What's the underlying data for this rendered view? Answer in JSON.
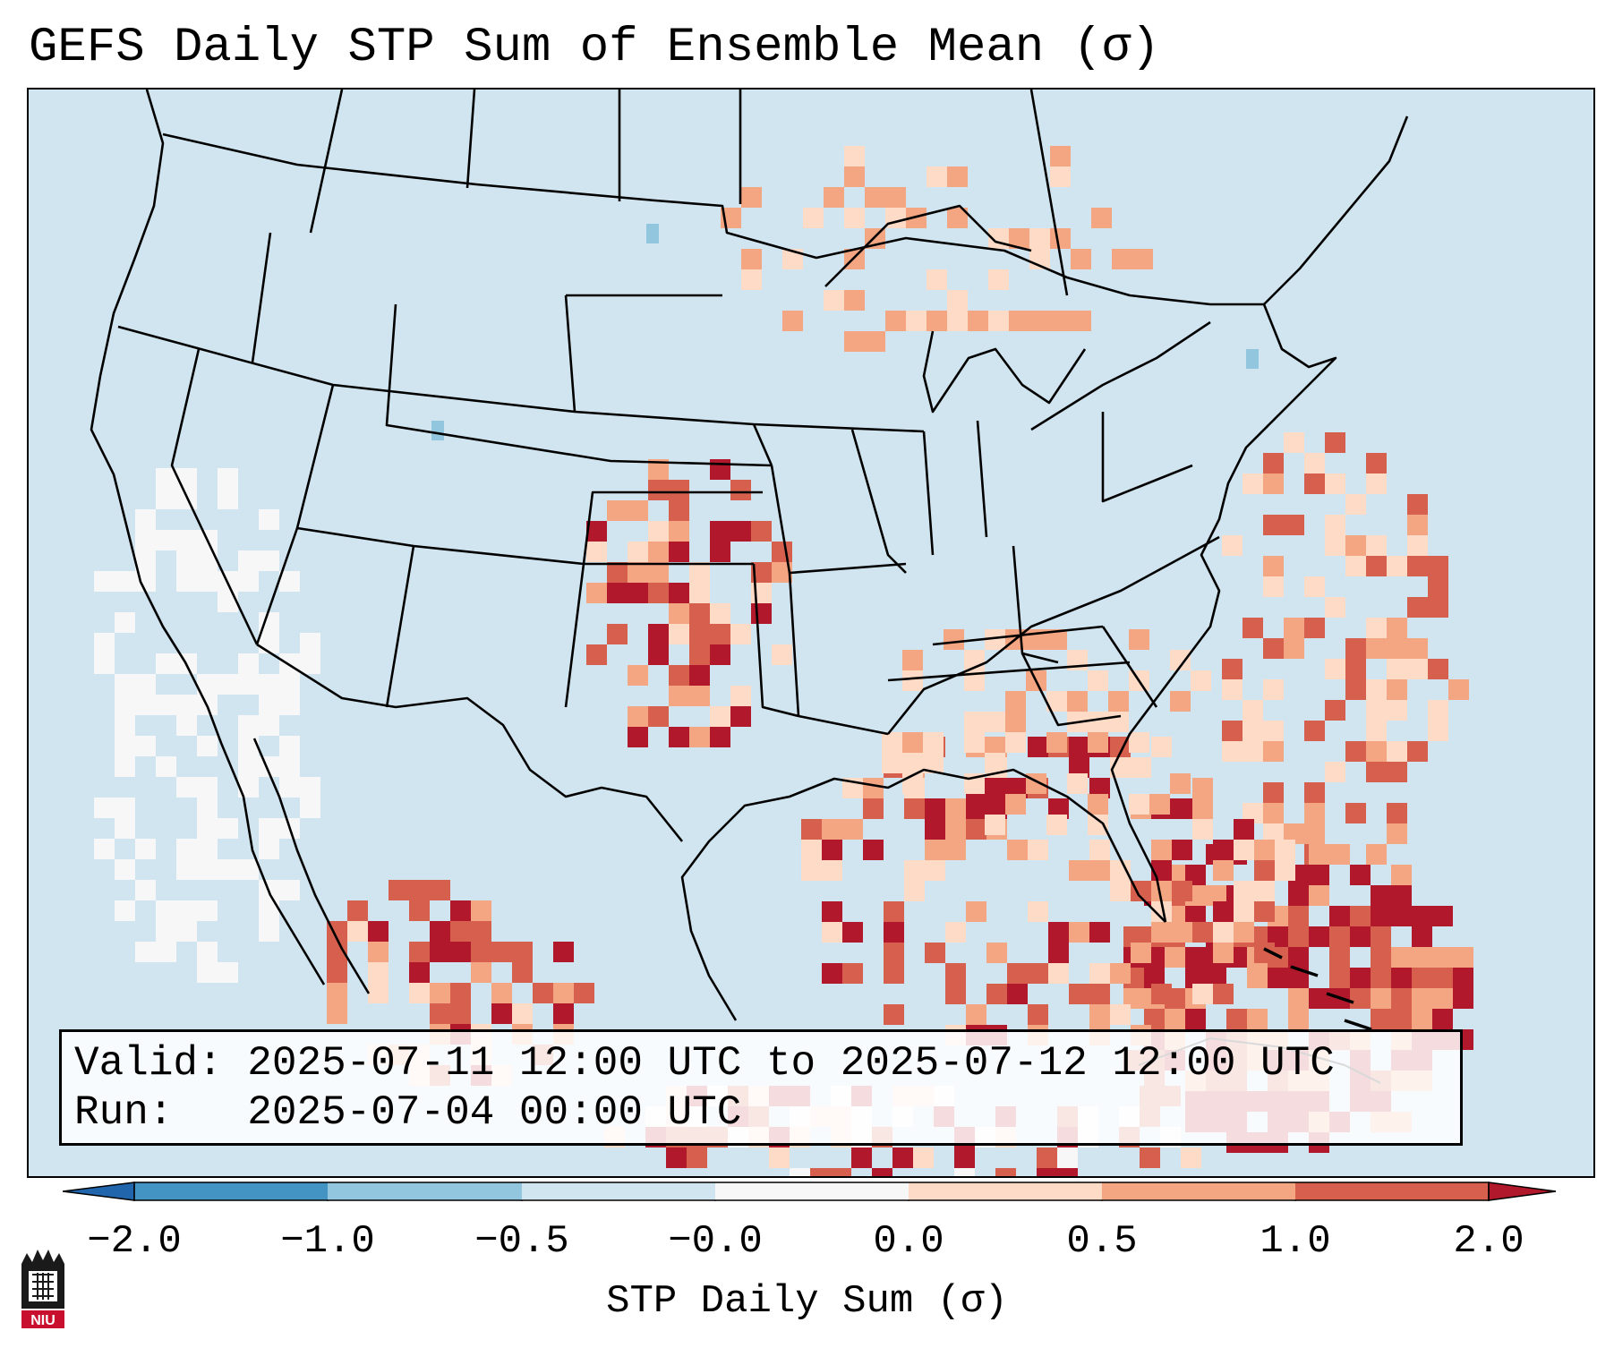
{
  "title": "GEFS Daily STP Sum of Ensemble Mean (σ)",
  "info": {
    "valid_label": "Valid:",
    "valid_value": "2025-07-11 12:00 UTC to 2025-07-12 12:00 UTC",
    "run_label": "Run:",
    "run_value": "2025-07-04 00:00 UTC"
  },
  "colorbar": {
    "label": "STP Daily Sum (σ)",
    "ticks": [
      "−2.0",
      "−1.0",
      "−0.5",
      "−0.0",
      "0.0",
      "0.5",
      "1.0",
      "2.0"
    ],
    "colors": {
      "under": "#2166ac",
      "neg_2_1": "#4393c3",
      "neg_1_05": "#92c5de",
      "neg_05_0": "#d1e5f0",
      "zero": "#f7f7f7",
      "pos_0_05": "#fddbc7",
      "pos_05_1": "#f4a582",
      "pos_1_2": "#d6604d",
      "over": "#b2182b"
    }
  },
  "logo": {
    "text": "NIU",
    "color": "#c8102e"
  }
}
